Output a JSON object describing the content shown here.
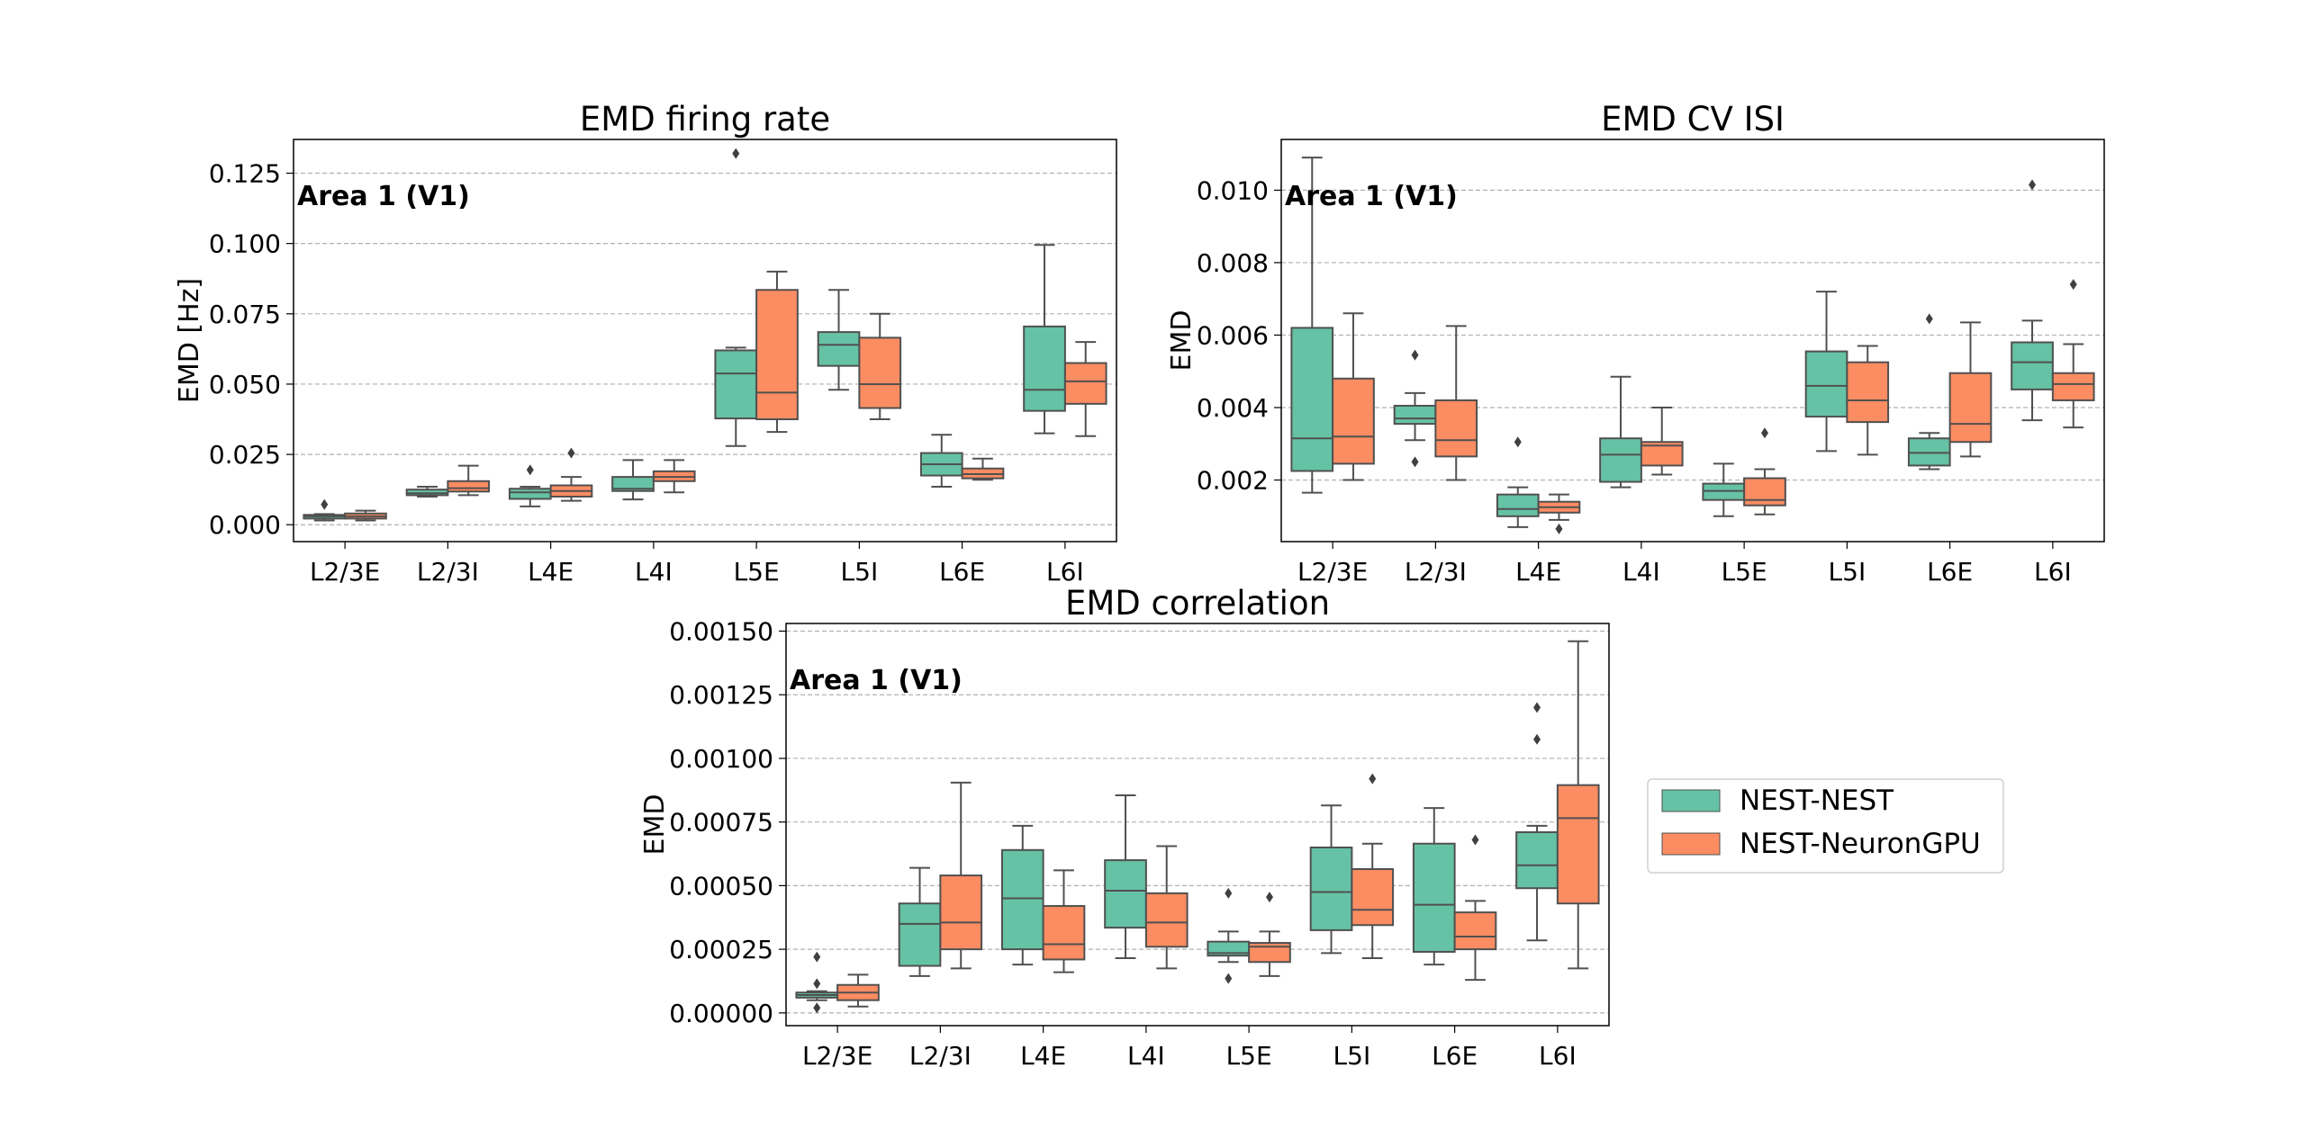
{
  "colors": {
    "nest_nest": "#66c2a5",
    "nest_neurongpu": "#fc8d62",
    "box_edge": "#505050",
    "grid": "#b0b0b0",
    "annotation": "#6b6b6b"
  },
  "legend": {
    "placement": "right",
    "entries": [
      {
        "label": "NEST-NEST",
        "color": "#66c2a5"
      },
      {
        "label": "NEST-NeuronGPU",
        "color": "#fc8d62"
      }
    ]
  },
  "chart_data": [
    {
      "type": "box",
      "title": "EMD firing rate",
      "annotation": "Area 1 (V1)",
      "xlabel": "",
      "ylabel": "EMD [Hz]",
      "ylim": [
        -0.006,
        0.137
      ],
      "yticks": [
        0,
        0.025,
        0.05,
        0.075,
        0.1,
        0.125
      ],
      "ytick_labels": [
        "0.000",
        "0.025",
        "0.050",
        "0.075",
        "0.100",
        "0.125"
      ],
      "grid": "y-dashed",
      "categories": [
        "L2/3E",
        "L2/3I",
        "L4E",
        "L4I",
        "L5E",
        "L5I",
        "L6E",
        "L6I"
      ],
      "series": [
        {
          "name": "NEST-NEST",
          "boxes": [
            {
              "wl": 0.0015,
              "q1": 0.0022,
              "med": 0.003,
              "q3": 0.0035,
              "wh": 0.0038,
              "out": [
                0.0072
              ]
            },
            {
              "wl": 0.01,
              "q1": 0.0105,
              "med": 0.0112,
              "q3": 0.0125,
              "wh": 0.0135,
              "out": []
            },
            {
              "wl": 0.0065,
              "q1": 0.0092,
              "med": 0.0115,
              "q3": 0.0128,
              "wh": 0.0135,
              "out": [
                0.0195
              ]
            },
            {
              "wl": 0.009,
              "q1": 0.012,
              "med": 0.0128,
              "q3": 0.017,
              "wh": 0.023,
              "out": []
            },
            {
              "wl": 0.028,
              "q1": 0.0378,
              "med": 0.0538,
              "q3": 0.062,
              "wh": 0.063,
              "out": [
                0.132
              ]
            },
            {
              "wl": 0.048,
              "q1": 0.0565,
              "med": 0.064,
              "q3": 0.0685,
              "wh": 0.0835,
              "out": []
            },
            {
              "wl": 0.0135,
              "q1": 0.0175,
              "med": 0.0215,
              "q3": 0.0255,
              "wh": 0.032,
              "out": []
            },
            {
              "wl": 0.0325,
              "q1": 0.0405,
              "med": 0.048,
              "q3": 0.0705,
              "wh": 0.0995,
              "out": []
            }
          ]
        },
        {
          "name": "NEST-NeuronGPU",
          "boxes": [
            {
              "wl": 0.0015,
              "q1": 0.0022,
              "med": 0.003,
              "q3": 0.004,
              "wh": 0.005,
              "out": []
            },
            {
              "wl": 0.0105,
              "q1": 0.0118,
              "med": 0.013,
              "q3": 0.0155,
              "wh": 0.021,
              "out": []
            },
            {
              "wl": 0.0085,
              "q1": 0.01,
              "med": 0.012,
              "q3": 0.014,
              "wh": 0.017,
              "out": [
                0.0255
              ]
            },
            {
              "wl": 0.0115,
              "q1": 0.0155,
              "med": 0.017,
              "q3": 0.019,
              "wh": 0.023,
              "out": []
            },
            {
              "wl": 0.033,
              "q1": 0.0375,
              "med": 0.047,
              "q3": 0.0835,
              "wh": 0.09,
              "out": []
            },
            {
              "wl": 0.0375,
              "q1": 0.0415,
              "med": 0.05,
              "q3": 0.0665,
              "wh": 0.075,
              "out": []
            },
            {
              "wl": 0.016,
              "q1": 0.0165,
              "med": 0.018,
              "q3": 0.02,
              "wh": 0.0235,
              "out": []
            },
            {
              "wl": 0.0315,
              "q1": 0.043,
              "med": 0.051,
              "q3": 0.0575,
              "wh": 0.065,
              "out": []
            }
          ]
        }
      ]
    },
    {
      "type": "box",
      "title": "EMD CV ISI",
      "annotation": "Area 1 (V1)",
      "xlabel": "",
      "ylabel": "EMD",
      "ylim": [
        0.0003,
        0.0114
      ],
      "yticks": [
        0.002,
        0.004,
        0.006,
        0.008,
        0.01
      ],
      "ytick_labels": [
        "0.002",
        "0.004",
        "0.006",
        "0.008",
        "0.010"
      ],
      "grid": "y-dashed",
      "categories": [
        "L2/3E",
        "L2/3I",
        "L4E",
        "L4I",
        "L5E",
        "L5I",
        "L6E",
        "L6I"
      ],
      "series": [
        {
          "name": "NEST-NEST",
          "boxes": [
            {
              "wl": 0.00165,
              "q1": 0.00225,
              "med": 0.00315,
              "q3": 0.0062,
              "wh": 0.0109,
              "out": []
            },
            {
              "wl": 0.0031,
              "q1": 0.00355,
              "med": 0.0037,
              "q3": 0.00405,
              "wh": 0.0044,
              "out": [
                0.00545,
                0.0025
              ]
            },
            {
              "wl": 0.0007,
              "q1": 0.001,
              "med": 0.0012,
              "q3": 0.0016,
              "wh": 0.0018,
              "out": [
                0.00305
              ]
            },
            {
              "wl": 0.0018,
              "q1": 0.00195,
              "med": 0.0027,
              "q3": 0.00315,
              "wh": 0.00485,
              "out": []
            },
            {
              "wl": 0.001,
              "q1": 0.00145,
              "med": 0.0017,
              "q3": 0.0019,
              "wh": 0.00245,
              "out": []
            },
            {
              "wl": 0.0028,
              "q1": 0.00375,
              "med": 0.0046,
              "q3": 0.00555,
              "wh": 0.0072,
              "out": []
            },
            {
              "wl": 0.0023,
              "q1": 0.0024,
              "med": 0.00275,
              "q3": 0.00315,
              "wh": 0.0033,
              "out": [
                0.00645
              ]
            },
            {
              "wl": 0.00365,
              "q1": 0.0045,
              "med": 0.00525,
              "q3": 0.0058,
              "wh": 0.0064,
              "out": [
                0.01015
              ]
            }
          ]
        },
        {
          "name": "NEST-NeuronGPU",
          "boxes": [
            {
              "wl": 0.002,
              "q1": 0.00245,
              "med": 0.0032,
              "q3": 0.0048,
              "wh": 0.0066,
              "out": []
            },
            {
              "wl": 0.002,
              "q1": 0.00265,
              "med": 0.0031,
              "q3": 0.0042,
              "wh": 0.00625,
              "out": []
            },
            {
              "wl": 0.0009,
              "q1": 0.0011,
              "med": 0.00125,
              "q3": 0.0014,
              "wh": 0.0016,
              "out": [
                0.00065
              ]
            },
            {
              "wl": 0.00215,
              "q1": 0.0024,
              "med": 0.00295,
              "q3": 0.00305,
              "wh": 0.004,
              "out": []
            },
            {
              "wl": 0.00105,
              "q1": 0.0013,
              "med": 0.00145,
              "q3": 0.00205,
              "wh": 0.0023,
              "out": [
                0.0033
              ]
            },
            {
              "wl": 0.0027,
              "q1": 0.0036,
              "med": 0.0042,
              "q3": 0.00525,
              "wh": 0.0057,
              "out": []
            },
            {
              "wl": 0.00265,
              "q1": 0.00305,
              "med": 0.00355,
              "q3": 0.00495,
              "wh": 0.00635,
              "out": []
            },
            {
              "wl": 0.00345,
              "q1": 0.0042,
              "med": 0.00465,
              "q3": 0.00495,
              "wh": 0.00575,
              "out": [
                0.0074
              ]
            }
          ]
        }
      ]
    },
    {
      "type": "box",
      "title": "EMD correlation",
      "annotation": "Area 1 (V1)",
      "xlabel": "",
      "ylabel": "EMD",
      "ylim": [
        -5e-05,
        0.00153
      ],
      "yticks": [
        0,
        0.00025,
        0.0005,
        0.00075,
        0.001,
        0.00125,
        0.0015
      ],
      "ytick_labels": [
        "0.00000",
        "0.00025",
        "0.00050",
        "0.00075",
        "0.00100",
        "0.00125",
        "0.00150"
      ],
      "grid": "y-dashed",
      "categories": [
        "L2/3E",
        "L2/3I",
        "L4E",
        "L4I",
        "L5E",
        "L5I",
        "L6E",
        "L6I"
      ],
      "series": [
        {
          "name": "NEST-NEST",
          "boxes": [
            {
              "wl": 5e-05,
              "q1": 6e-05,
              "med": 7e-05,
              "q3": 8e-05,
              "wh": 8.5e-05,
              "out": [
                0.00022,
                0.000115,
                2e-05
              ]
            },
            {
              "wl": 0.000145,
              "q1": 0.000185,
              "med": 0.00035,
              "q3": 0.00043,
              "wh": 0.00057,
              "out": []
            },
            {
              "wl": 0.00019,
              "q1": 0.00025,
              "med": 0.00045,
              "q3": 0.00064,
              "wh": 0.000735,
              "out": []
            },
            {
              "wl": 0.000215,
              "q1": 0.000335,
              "med": 0.00048,
              "q3": 0.0006,
              "wh": 0.000855,
              "out": []
            },
            {
              "wl": 0.0002,
              "q1": 0.000225,
              "med": 0.000235,
              "q3": 0.00028,
              "wh": 0.00032,
              "out": [
                0.00047,
                0.000135
              ]
            },
            {
              "wl": 0.000235,
              "q1": 0.000325,
              "med": 0.000475,
              "q3": 0.00065,
              "wh": 0.000815,
              "out": []
            },
            {
              "wl": 0.00019,
              "q1": 0.00024,
              "med": 0.000425,
              "q3": 0.000665,
              "wh": 0.000805,
              "out": []
            },
            {
              "wl": 0.000285,
              "q1": 0.00049,
              "med": 0.00058,
              "q3": 0.00071,
              "wh": 0.000735,
              "out": [
                0.0012,
                0.001075
              ]
            }
          ]
        },
        {
          "name": "NEST-NeuronGPU",
          "boxes": [
            {
              "wl": 2.5e-05,
              "q1": 5e-05,
              "med": 8e-05,
              "q3": 0.00011,
              "wh": 0.00015,
              "out": []
            },
            {
              "wl": 0.000175,
              "q1": 0.00025,
              "med": 0.000355,
              "q3": 0.00054,
              "wh": 0.000905,
              "out": []
            },
            {
              "wl": 0.00016,
              "q1": 0.00021,
              "med": 0.00027,
              "q3": 0.00042,
              "wh": 0.00056,
              "out": []
            },
            {
              "wl": 0.000175,
              "q1": 0.00026,
              "med": 0.000355,
              "q3": 0.00047,
              "wh": 0.000655,
              "out": []
            },
            {
              "wl": 0.000145,
              "q1": 0.0002,
              "med": 0.00026,
              "q3": 0.000275,
              "wh": 0.00032,
              "out": [
                0.000455
              ]
            },
            {
              "wl": 0.000215,
              "q1": 0.000345,
              "med": 0.000405,
              "q3": 0.000565,
              "wh": 0.000665,
              "out": [
                0.00092
              ]
            },
            {
              "wl": 0.00013,
              "q1": 0.00025,
              "med": 0.0003,
              "q3": 0.000395,
              "wh": 0.00044,
              "out": [
                0.00068
              ]
            },
            {
              "wl": 0.000175,
              "q1": 0.00043,
              "med": 0.000765,
              "q3": 0.000895,
              "wh": 0.00146,
              "out": []
            }
          ]
        }
      ]
    }
  ]
}
